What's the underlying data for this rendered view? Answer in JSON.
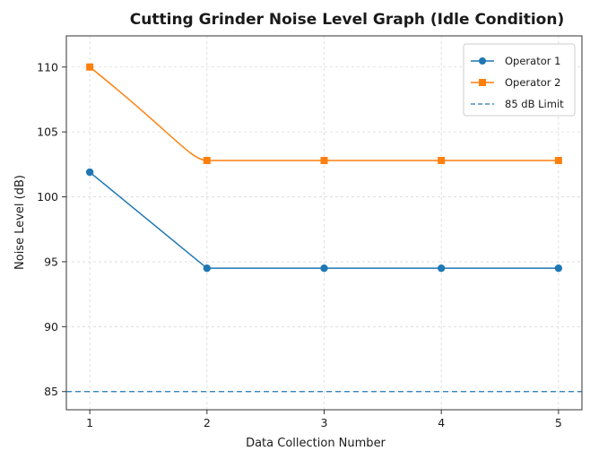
{
  "chart_data": {
    "type": "line",
    "title": "Cutting Grinder Noise Level Graph (Idle Condition)",
    "xlabel": "Data Collection Number",
    "ylabel": "Noise Level (dB)",
    "x": [
      1,
      2,
      3,
      4,
      5
    ],
    "xticks": [
      "1",
      "2",
      "3",
      "4",
      "5"
    ],
    "yticks": [
      "85",
      "90",
      "95",
      "100",
      "105",
      "110"
    ],
    "xlim": [
      0.8,
      5.2
    ],
    "ylim": [
      83.6,
      112.4
    ],
    "grid": true,
    "legend_position": "top-right",
    "series": [
      {
        "name": "Operator 1",
        "values": [
          101.9,
          94.5,
          94.5,
          94.5,
          94.5
        ],
        "color": "#1f77b4",
        "marker": "circle"
      },
      {
        "name": "Operator 2",
        "values": [
          110.0,
          102.8,
          102.8,
          102.8,
          102.8
        ],
        "color": "#ff7f0e",
        "marker": "square"
      }
    ],
    "reference_lines": [
      {
        "name": "85 dB Limit",
        "y": 85,
        "color": "#1f77b4",
        "style": "dashed"
      }
    ]
  }
}
